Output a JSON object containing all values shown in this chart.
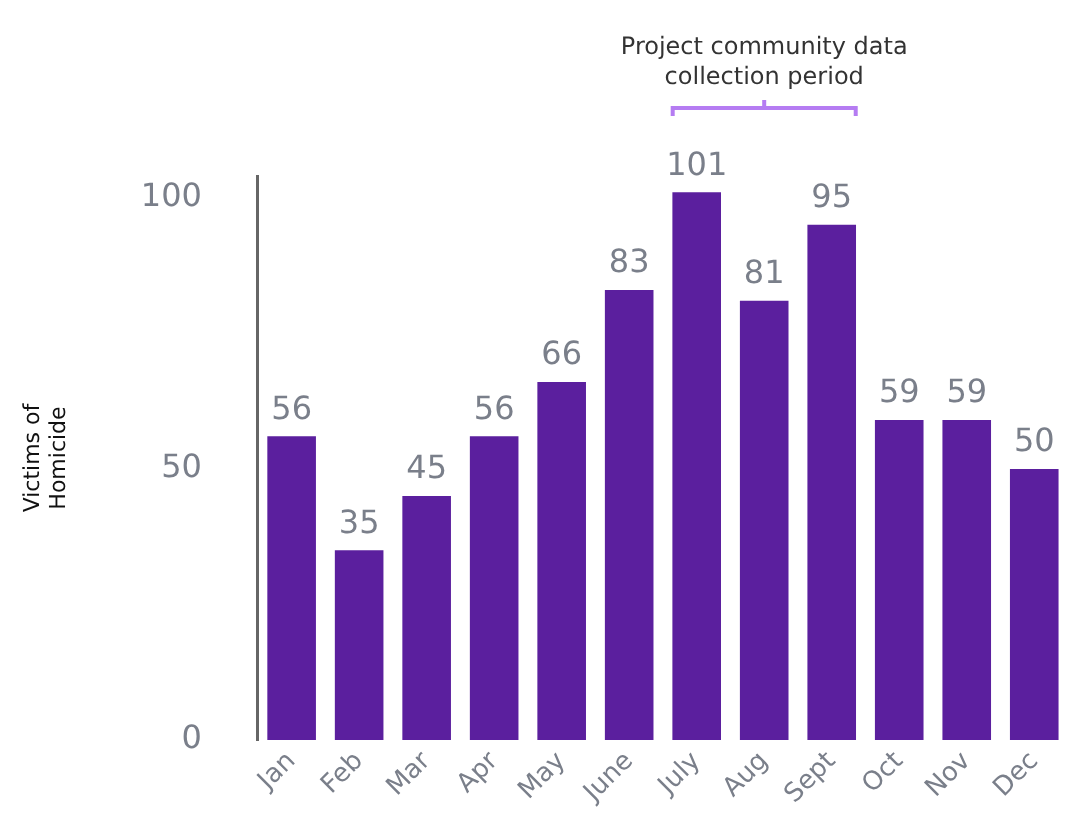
{
  "chart_data": {
    "type": "bar",
    "ylabel": "Victims of Homicide",
    "categories": [
      "Jan",
      "Feb",
      "Mar",
      "Apr",
      "May",
      "June",
      "July",
      "Aug",
      "Sept",
      "Oct",
      "Nov",
      "Dec"
    ],
    "values": [
      56,
      35,
      45,
      56,
      66,
      83,
      101,
      81,
      95,
      59,
      59,
      50
    ],
    "color": "#5b1f9e",
    "ylim": [
      0,
      104
    ],
    "yticks": [
      0,
      50,
      100
    ],
    "grid": false,
    "data_labels": true,
    "annotations": [
      {
        "text": "Project community data collection period",
        "x": "Aug"
      }
    ]
  }
}
